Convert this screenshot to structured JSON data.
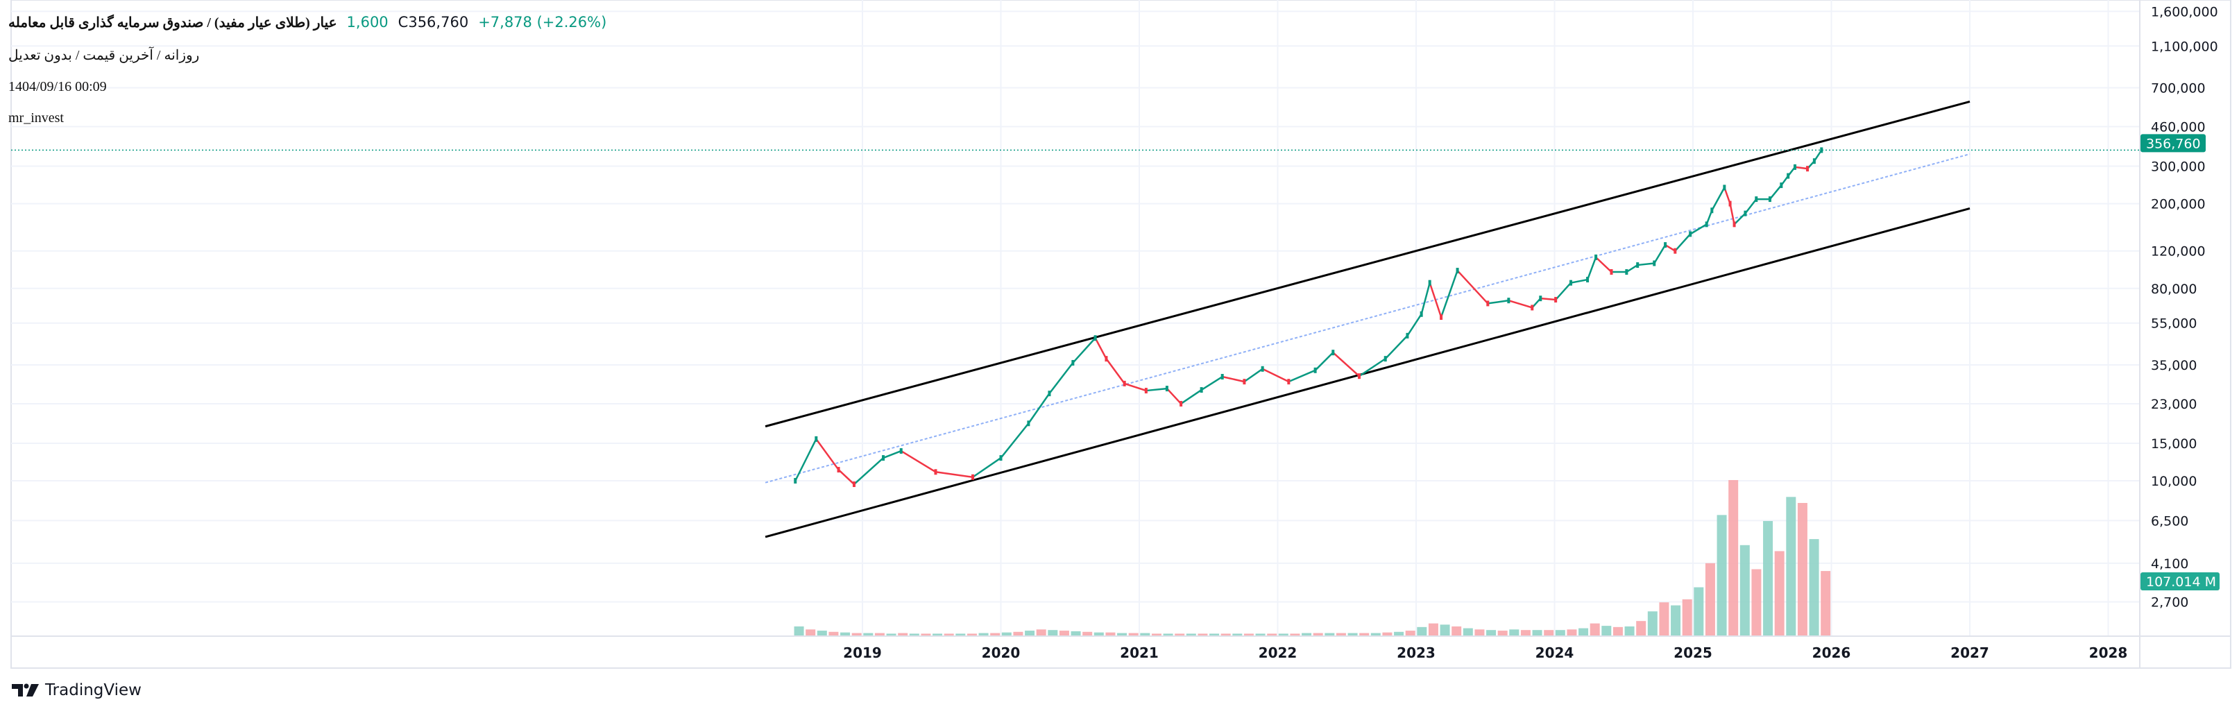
{
  "legend": {
    "symbol_title": "عیار (طلای عیار مفید) / صندوق سرمایه گذاری قابل معامله",
    "low_partial": "1,600",
    "close": "C356,760",
    "change": "+7,878 (+2.26%)",
    "settings": "روزانه / آخرین قیمت / بدون تعدیل",
    "datetime": "1404/09/16 00:09",
    "author": "mr_invest"
  },
  "branding": {
    "logo_text": "TradingView",
    "logo_icon": "tradingview-logo-icon"
  },
  "colors": {
    "up": "#089981",
    "down": "#f23645",
    "vol_up": "#8fd3c6",
    "vol_down": "#f7a6ab",
    "channel": "#000000",
    "midline": "#8fb0f7",
    "last_price": "#089981",
    "volume_tag": "#22ab94"
  },
  "chart_data": {
    "type": "line",
    "y_scale": "log",
    "grid": true,
    "y_ticks": [
      "1,600,000",
      "1,100,000",
      "700,000",
      "460,000",
      "300,000",
      "200,000",
      "120,000",
      "80,000",
      "55,000",
      "35,000",
      "23,000",
      "15,000",
      "10,000",
      "6,500",
      "4,100",
      "2,700"
    ],
    "y_tick_values": [
      1600000,
      1100000,
      700000,
      460000,
      300000,
      200000,
      120000,
      80000,
      55000,
      35000,
      23000,
      15000,
      10000,
      6500,
      4100,
      2700
    ],
    "x_ticks": [
      "2019",
      "2020",
      "2021",
      "2022",
      "2023",
      "2024",
      "2025",
      "2026",
      "2027",
      "2028"
    ],
    "last_price": 356760,
    "last_price_label": "356,760",
    "last_volume_label": "107.014 M",
    "price": [
      [
        "2018-07-08",
        10000
      ],
      [
        "2018-09-01",
        15700
      ],
      [
        "2018-10-30",
        11270
      ],
      [
        "2018-12-10",
        9630
      ],
      [
        "2019-02-25",
        12800
      ],
      [
        "2019-04-13",
        13800
      ],
      [
        "2019-07-13",
        11000
      ],
      [
        "2019-10-19",
        10400
      ],
      [
        "2020-01-01",
        12800
      ],
      [
        "2020-03-14",
        18600
      ],
      [
        "2020-05-08",
        25700
      ],
      [
        "2020-07-09",
        35800
      ],
      [
        "2020-09-06",
        46800
      ],
      [
        "2020-10-05",
        37400
      ],
      [
        "2020-11-22",
        28600
      ],
      [
        "2021-01-19",
        26500
      ],
      [
        "2021-03-15",
        27100
      ],
      [
        "2021-04-21",
        23000
      ],
      [
        "2021-06-14",
        26700
      ],
      [
        "2021-08-08",
        30800
      ],
      [
        "2021-10-05",
        29200
      ],
      [
        "2021-11-22",
        33500
      ],
      [
        "2022-01-30",
        29200
      ],
      [
        "2022-04-10",
        33000
      ],
      [
        "2022-05-27",
        40000
      ],
      [
        "2022-08-04",
        31000
      ],
      [
        "2022-10-12",
        37400
      ],
      [
        "2022-12-09",
        48000
      ],
      [
        "2023-01-15",
        60600
      ],
      [
        "2023-02-06",
        85000
      ],
      [
        "2023-03-08",
        58700
      ],
      [
        "2023-04-20",
        97000
      ],
      [
        "2023-07-09",
        68000
      ],
      [
        "2023-09-02",
        70200
      ],
      [
        "2023-11-03",
        65000
      ],
      [
        "2023-11-25",
        71800
      ],
      [
        "2024-01-04",
        70800
      ],
      [
        "2024-02-13",
        85000
      ],
      [
        "2024-03-28",
        88000
      ],
      [
        "2024-04-19",
        112000
      ],
      [
        "2024-05-30",
        95600
      ],
      [
        "2024-07-09",
        95600
      ],
      [
        "2024-08-07",
        103000
      ],
      [
        "2024-09-20",
        105000
      ],
      [
        "2024-10-19",
        128000
      ],
      [
        "2024-11-14",
        120000
      ],
      [
        "2024-12-24",
        144000
      ],
      [
        "2025-02-06",
        160000
      ],
      [
        "2025-02-20",
        186000
      ],
      [
        "2025-03-25",
        238000
      ],
      [
        "2025-04-09",
        200000
      ],
      [
        "2025-04-20",
        160000
      ],
      [
        "2025-05-19",
        180000
      ],
      [
        "2025-06-17",
        210000
      ],
      [
        "2025-07-23",
        210000
      ],
      [
        "2025-08-22",
        244000
      ],
      [
        "2025-09-09",
        270000
      ],
      [
        "2025-09-27",
        297000
      ],
      [
        "2025-10-30",
        292000
      ],
      [
        "2025-11-17",
        317000
      ],
      [
        "2025-12-06",
        356760
      ]
    ],
    "volume_millions": {
      "start_month": "2018-07",
      "values": [
        15,
        10,
        8,
        6,
        5,
        4,
        4,
        4,
        3,
        4,
        3,
        3,
        3,
        3,
        3,
        3,
        4,
        4,
        5,
        6,
        8,
        10,
        9,
        8,
        7,
        6,
        5,
        5,
        4,
        4,
        4,
        3,
        3,
        3,
        3,
        3,
        3,
        3,
        3,
        3,
        3,
        3,
        3,
        3,
        4,
        4,
        4,
        4,
        4,
        4,
        4,
        5,
        6,
        8,
        14,
        20,
        18,
        15,
        12,
        10,
        9,
        8,
        10,
        9,
        9,
        9,
        9,
        10,
        12,
        20,
        16,
        14,
        15,
        24,
        40,
        55,
        50,
        60,
        80,
        120,
        200,
        258,
        150,
        110,
        190,
        140,
        230,
        220,
        160,
        107.014
      ]
    },
    "channel": {
      "upper": [
        [
          "2018-04-20",
          18000
        ],
        [
          "2027-01-01",
          603000
        ]
      ],
      "lower": [
        [
          "2018-04-20",
          5450
        ],
        [
          "2027-01-01",
          190000
        ]
      ],
      "middle": [
        [
          "2018-04-20",
          9800
        ],
        [
          "2027-01-01",
          342000
        ]
      ]
    }
  }
}
